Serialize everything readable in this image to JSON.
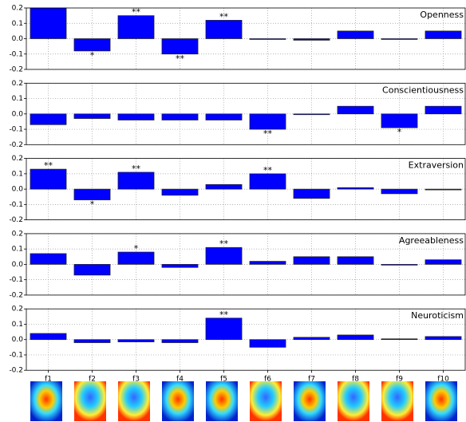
{
  "chart_data": [
    {
      "type": "bar",
      "title": "Openness",
      "color": "#0000ff",
      "grid": true,
      "values": [
        0.2,
        -0.08,
        0.15,
        -0.1,
        0.12,
        -0.005,
        -0.01,
        0.05,
        -0.005,
        0.05
      ],
      "significance": [
        null,
        "*",
        "**",
        "**",
        "**",
        null,
        null,
        null,
        null,
        null
      ],
      "ylim": [
        -0.2,
        0.2
      ],
      "yticks": [
        -0.2,
        -0.1,
        {
          "value": 0,
          "label": "0.0"
        },
        0.1,
        0.2
      ]
    },
    {
      "type": "bar",
      "title": "Conscientiousness",
      "color": "#0000ff",
      "grid": true,
      "values": [
        -0.07,
        -0.03,
        -0.04,
        -0.04,
        -0.04,
        -0.1,
        -0.005,
        0.05,
        -0.09,
        0.05
      ],
      "significance": [
        null,
        null,
        null,
        null,
        null,
        "**",
        null,
        null,
        "*",
        null
      ],
      "ylim": [
        -0.2,
        0.2
      ],
      "yticks": [
        -0.2,
        -0.1,
        {
          "value": 0,
          "label": "0.0"
        },
        0.1,
        0.2
      ]
    },
    {
      "type": "bar",
      "title": "Extraversion",
      "color": "#0000ff",
      "grid": true,
      "values": [
        0.13,
        -0.07,
        0.11,
        -0.04,
        0.03,
        0.1,
        -0.06,
        0.01,
        -0.03,
        -0.005
      ],
      "significance": [
        "**",
        "*",
        "**",
        null,
        null,
        "**",
        null,
        null,
        null,
        null
      ],
      "ylim": [
        -0.2,
        0.2
      ],
      "yticks": [
        -0.2,
        -0.1,
        {
          "value": 0,
          "label": "0.0"
        },
        0.1,
        0.2
      ]
    },
    {
      "type": "bar",
      "title": "Agreeableness",
      "color": "#0000ff",
      "grid": true,
      "values": [
        0.07,
        -0.07,
        0.08,
        -0.02,
        0.11,
        0.02,
        0.05,
        0.05,
        -0.005,
        0.03
      ],
      "significance": [
        null,
        null,
        "*",
        null,
        "**",
        null,
        null,
        null,
        null,
        null
      ],
      "ylim": [
        -0.2,
        0.2
      ],
      "yticks": [
        -0.2,
        -0.1,
        {
          "value": 0,
          "label": "0.0"
        },
        0.1,
        0.2
      ]
    },
    {
      "type": "bar",
      "title": "Neuroticism",
      "color": "#0000ff",
      "grid": true,
      "categories": [
        "f1",
        "f2",
        "f3",
        "f4",
        "f5",
        "f6",
        "f7",
        "f8",
        "f9",
        "f10"
      ],
      "values": [
        0.04,
        -0.02,
        -0.015,
        -0.02,
        0.14,
        -0.05,
        0.015,
        0.03,
        0.005,
        0.02
      ],
      "significance": [
        null,
        null,
        null,
        null,
        "**",
        null,
        null,
        null,
        null,
        null
      ],
      "ylim": [
        -0.2,
        0.2
      ],
      "yticks": [
        -0.2,
        -0.1,
        {
          "value": 0,
          "label": "0.0"
        },
        0.1,
        0.2
      ]
    }
  ]
}
